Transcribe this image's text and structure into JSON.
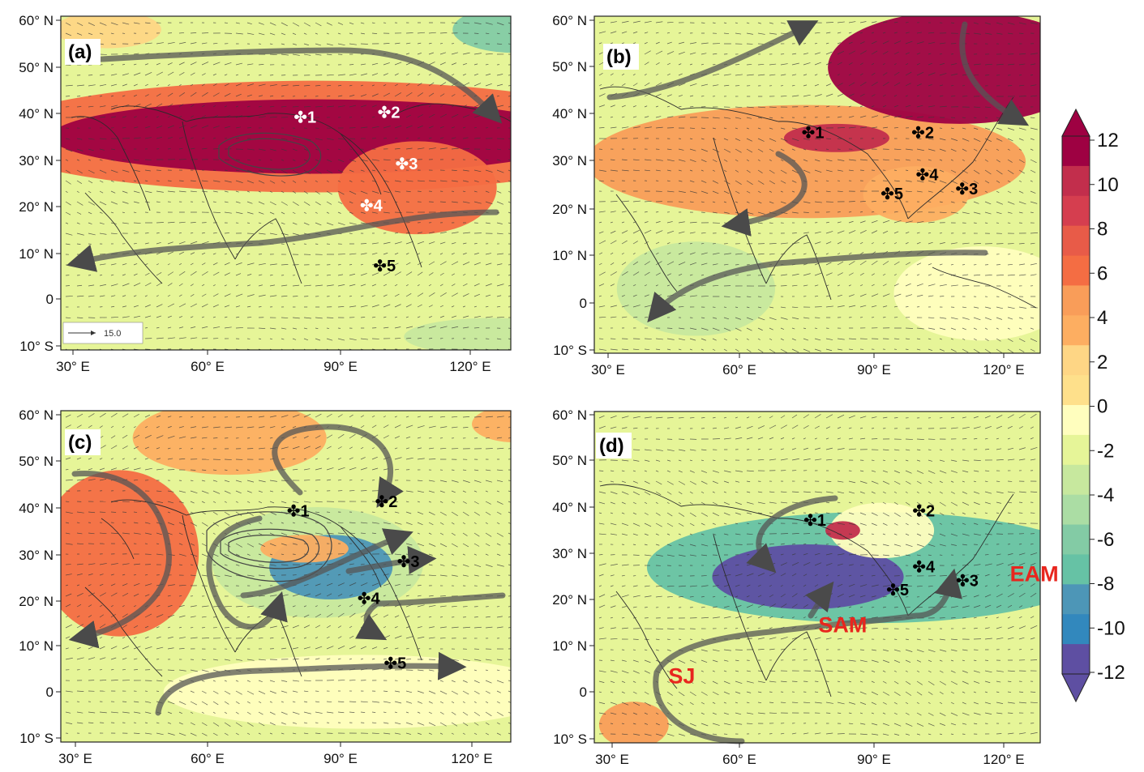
{
  "panels": [
    {
      "id": "a",
      "label": "(a)",
      "lat_labels": [
        "60° N",
        "50° N",
        "40° N",
        "30° N",
        "20° N",
        "10° N",
        "0",
        "10° S"
      ],
      "lon_labels": [
        "30° E",
        "60° E",
        "90° E",
        "120° E"
      ],
      "vector_scale_label": "15.0",
      "field_blobs": [
        {
          "lon": 38,
          "lat": 58,
          "rx": 12,
          "ry": 4,
          "value": 2
        },
        {
          "lon": 130,
          "lat": 58,
          "rx": 14,
          "ry": 5,
          "value": -6
        },
        {
          "lon": 85,
          "lat": 35,
          "rx": 75,
          "ry": 12,
          "value": 6
        },
        {
          "lon": 85,
          "lat": 35,
          "rx": 60,
          "ry": 8,
          "value": 12
        },
        {
          "lon": 108,
          "lat": 24,
          "rx": 18,
          "ry": 10,
          "value": 6
        },
        {
          "lon": 95,
          "lat": 3,
          "rx": 50,
          "ry": 6,
          "value": -2
        },
        {
          "lon": 125,
          "lat": -8,
          "rx": 20,
          "ry": 4,
          "value": -3
        }
      ],
      "sites": [
        {
          "label": "1",
          "lon": 80,
          "lat": 38,
          "color": "#ffffff"
        },
        {
          "label": "2",
          "lon": 99,
          "lat": 39,
          "color": "#ffffff"
        },
        {
          "label": "3",
          "lon": 103,
          "lat": 28,
          "color": "#ffffff"
        },
        {
          "label": "4",
          "lon": 95,
          "lat": 19,
          "color": "#ffffff"
        },
        {
          "label": "5",
          "lon": 98,
          "lat": 6,
          "color": "#000000"
        }
      ],
      "system_labels": []
    },
    {
      "id": "b",
      "label": "(b)",
      "lat_labels": [
        "60° N",
        "50° N",
        "40° N",
        "30° N",
        "20° N",
        "10° N",
        "0",
        "10° S"
      ],
      "lon_labels": [
        "30° E",
        "60° E",
        "90° E",
        "120° E"
      ],
      "vector_scale_label": "",
      "field_blobs": [
        {
          "lon": 75,
          "lat": 30,
          "rx": 50,
          "ry": 12,
          "value": 5
        },
        {
          "lon": 110,
          "lat": 50,
          "rx": 30,
          "ry": 12,
          "value": 12
        },
        {
          "lon": 82,
          "lat": 35,
          "rx": 12,
          "ry": 3,
          "value": 10
        },
        {
          "lon": 100,
          "lat": 23,
          "rx": 12,
          "ry": 6,
          "value": 3
        },
        {
          "lon": 50,
          "lat": 3,
          "rx": 18,
          "ry": 10,
          "value": -3
        },
        {
          "lon": 115,
          "lat": 2,
          "rx": 20,
          "ry": 10,
          "value": -1
        }
      ],
      "sites": [
        {
          "label": "1",
          "lon": 74,
          "lat": 35,
          "color": "#000000"
        },
        {
          "label": "2",
          "lon": 99,
          "lat": 35,
          "color": "#000000"
        },
        {
          "label": "3",
          "lon": 109,
          "lat": 23,
          "color": "#000000"
        },
        {
          "label": "4",
          "lon": 100,
          "lat": 26,
          "color": "#000000"
        },
        {
          "label": "5",
          "lon": 92,
          "lat": 22,
          "color": "#000000"
        }
      ],
      "system_labels": []
    },
    {
      "id": "c",
      "label": "(c)",
      "lat_labels": [
        "60° N",
        "50° N",
        "40° N",
        "30° N",
        "20° N",
        "10° N",
        "0",
        "10° S"
      ],
      "lon_labels": [
        "30° E",
        "60° E",
        "90° E",
        "120° E"
      ],
      "vector_scale_label": "",
      "field_blobs": [
        {
          "lon": 40,
          "lat": 30,
          "rx": 18,
          "ry": 18,
          "value": 6
        },
        {
          "lon": 65,
          "lat": 55,
          "rx": 22,
          "ry": 8,
          "value": 3
        },
        {
          "lon": 85,
          "lat": 28,
          "rx": 24,
          "ry": 12,
          "value": -4
        },
        {
          "lon": 88,
          "lat": 27,
          "rx": 14,
          "ry": 7,
          "value": -9
        },
        {
          "lon": 82,
          "lat": 31,
          "rx": 10,
          "ry": 3,
          "value": 3
        },
        {
          "lon": 130,
          "lat": 58,
          "rx": 10,
          "ry": 4,
          "value": 3
        },
        {
          "lon": 95,
          "lat": 0,
          "rx": 45,
          "ry": 8,
          "value": -1
        }
      ],
      "sites": [
        {
          "label": "1",
          "lon": 78,
          "lat": 38,
          "color": "#000000"
        },
        {
          "label": "2",
          "lon": 98,
          "lat": 40,
          "color": "#000000"
        },
        {
          "label": "3",
          "lon": 103,
          "lat": 27,
          "color": "#000000"
        },
        {
          "label": "4",
          "lon": 94,
          "lat": 19,
          "color": "#000000"
        },
        {
          "label": "5",
          "lon": 100,
          "lat": 5,
          "color": "#000000"
        }
      ],
      "system_labels": []
    },
    {
      "id": "d",
      "label": "(d)",
      "lat_labels": [
        "60° N",
        "50° N",
        "40° N",
        "30° N",
        "20° N",
        "10° N",
        "0",
        "10° S"
      ],
      "lon_labels": [
        "30° E",
        "60° E",
        "90° E",
        "120° E"
      ],
      "vector_scale_label": "",
      "field_blobs": [
        {
          "lon": 90,
          "lat": 27,
          "rx": 52,
          "ry": 12,
          "value": -8
        },
        {
          "lon": 75,
          "lat": 25,
          "rx": 22,
          "ry": 7,
          "value": -12
        },
        {
          "lon": 92,
          "lat": 35,
          "rx": 12,
          "ry": 6,
          "value": 0
        },
        {
          "lon": 83,
          "lat": 35,
          "rx": 4,
          "ry": 2,
          "value": 10
        },
        {
          "lon": 35,
          "lat": -7,
          "rx": 8,
          "ry": 5,
          "value": 5
        }
      ],
      "sites": [
        {
          "label": "1",
          "lon": 74,
          "lat": 36,
          "color": "#000000"
        },
        {
          "label": "2",
          "lon": 99,
          "lat": 38,
          "color": "#000000"
        },
        {
          "label": "3",
          "lon": 109,
          "lat": 23,
          "color": "#000000"
        },
        {
          "label": "4",
          "lon": 99,
          "lat": 26,
          "color": "#000000"
        },
        {
          "label": "5",
          "lon": 93,
          "lat": 21,
          "color": "#000000"
        }
      ],
      "system_labels": [
        {
          "text": "EAM",
          "lon": 127,
          "lat": 24
        },
        {
          "text": "SAM",
          "lon": 83,
          "lat": 13
        },
        {
          "text": "SJ",
          "lon": 46,
          "lat": 2
        }
      ]
    }
  ],
  "colorbar": {
    "ticks": [
      "12",
      "10",
      "8",
      "6",
      "4",
      "2",
      "0",
      "-2",
      "-4",
      "-6",
      "-8",
      "-10",
      "-12"
    ],
    "colors": [
      "#9e0142",
      "#c22e4c",
      "#d53e4f",
      "#e85b48",
      "#f46d43",
      "#f99d59",
      "#fdae61",
      "#fed685",
      "#fee08b",
      "#fffebe",
      "#e6f598",
      "#c7e89e",
      "#abdda4",
      "#83cba5",
      "#66c2a5",
      "#4d96b7",
      "#3288bd",
      "#5e4fa2"
    ]
  }
}
